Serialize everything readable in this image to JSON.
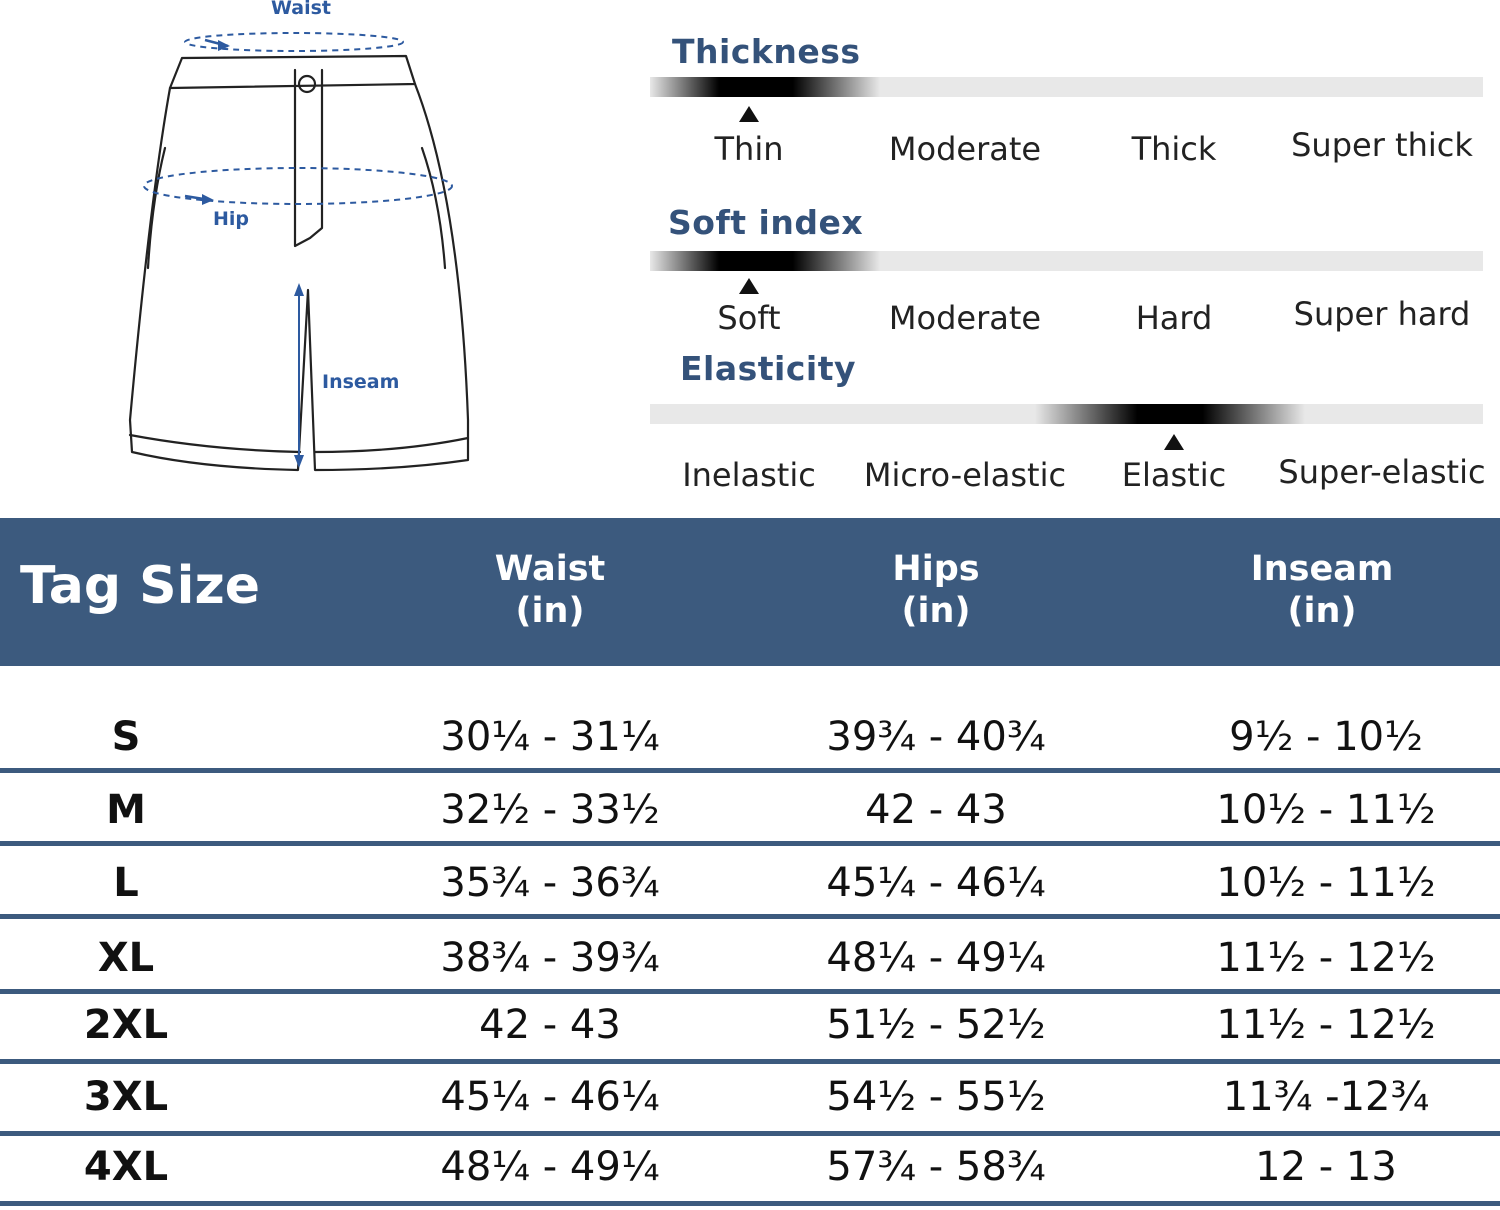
{
  "diagram": {
    "waist_label": "Waist",
    "hip_label": "Hip",
    "inseam_label": "Inseam"
  },
  "attributes": [
    {
      "title": "Thickness",
      "options": [
        "Thin",
        "Moderate",
        "Thick",
        "Super thick"
      ],
      "selected": "Thin"
    },
    {
      "title": "Soft index",
      "options": [
        "Soft",
        "Moderate",
        "Hard",
        "Super hard"
      ],
      "selected": "Soft"
    },
    {
      "title": "Elasticity",
      "options": [
        "Inelastic",
        "Micro-elastic",
        "Elastic",
        "Super-elastic"
      ],
      "selected": "Elastic"
    }
  ],
  "table": {
    "headers": {
      "tag": "Tag Size",
      "waist": [
        "Waist",
        "(in)"
      ],
      "hips": [
        "Hips",
        "(in)"
      ],
      "inseam": [
        "Inseam",
        "(in)"
      ]
    },
    "rows": [
      {
        "size": "S",
        "waist": "30¼ - 31¼",
        "hips": "39¾ - 40¾",
        "inseam": "9½ - 10½"
      },
      {
        "size": "M",
        "waist": "32½ - 33½",
        "hips": "42 - 43",
        "inseam": "10½ - 11½"
      },
      {
        "size": "L",
        "waist": "35¾ - 36¾",
        "hips": "45¼ - 46¼",
        "inseam": "10½ - 11½"
      },
      {
        "size": "XL",
        "waist": "38¾ - 39¾",
        "hips": "48¼ - 49¼",
        "inseam": "11½ - 12½"
      },
      {
        "size": "2XL",
        "waist": "42 - 43",
        "hips": "51½ - 52½",
        "inseam": "11½ - 12½"
      },
      {
        "size": "3XL",
        "waist": "45¼  - 46¼",
        "hips": "54½ -  55½",
        "inseam": "11¾ -12¾"
      },
      {
        "size": "4XL",
        "waist": "48¼ - 49¼",
        "hips": "57¾ - 58¾",
        "inseam": "12  - 13"
      }
    ]
  },
  "colors": {
    "header_bg": "#3c5a7e",
    "title_text": "#34527a",
    "diagram_label": "#2d5aa0"
  }
}
